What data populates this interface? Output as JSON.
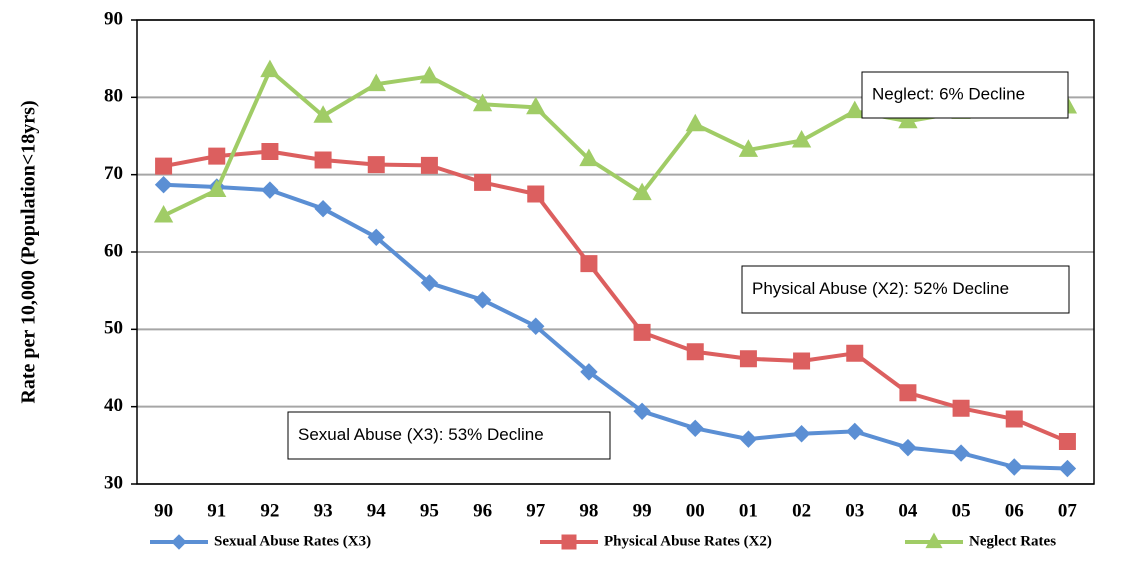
{
  "chart_data": {
    "type": "line",
    "ylabel": "Rate per 10,000 (Population<18yrs)",
    "categories": [
      "90",
      "91",
      "92",
      "93",
      "94",
      "95",
      "96",
      "97",
      "98",
      "99",
      "00",
      "01",
      "02",
      "03",
      "04",
      "05",
      "06",
      "07"
    ],
    "series": [
      {
        "name": "Sexual Abuse Rates (X3)",
        "color": "#5b8fd4",
        "marker": "diamond",
        "values": [
          68.7,
          68.4,
          68,
          65.6,
          61.9,
          56,
          53.8,
          50.4,
          44.5,
          39.4,
          37.2,
          35.8,
          36.5,
          36.8,
          34.7,
          34,
          32.2,
          32
        ]
      },
      {
        "name": "Physical Abuse Rates (X2)",
        "color": "#dc5f5f",
        "marker": "square",
        "values": [
          71.1,
          72.4,
          73,
          71.9,
          71.3,
          71.2,
          69,
          67.5,
          58.5,
          49.6,
          47.1,
          46.2,
          45.9,
          46.9,
          41.8,
          39.8,
          38.4,
          35.5
        ]
      },
      {
        "name": "Neglect Rates",
        "color": "#a0cc66",
        "marker": "triangle",
        "values": [
          64.7,
          68,
          83.5,
          77.6,
          81.7,
          82.7,
          79.1,
          78.7,
          72,
          67.6,
          76.5,
          73.2,
          74.4,
          78.2,
          76.9,
          78.1,
          79.8,
          78.8
        ]
      }
    ],
    "annotations": [
      "Neglect: 6% Decline",
      "Physical Abuse (X2): 52% Decline",
      "Sexual Abuse (X3): 53% Decline"
    ],
    "ylim": [
      30,
      90
    ],
    "yticks": [
      30,
      40,
      50,
      60,
      70,
      80,
      90
    ],
    "grid": true,
    "legend": "bottom"
  }
}
